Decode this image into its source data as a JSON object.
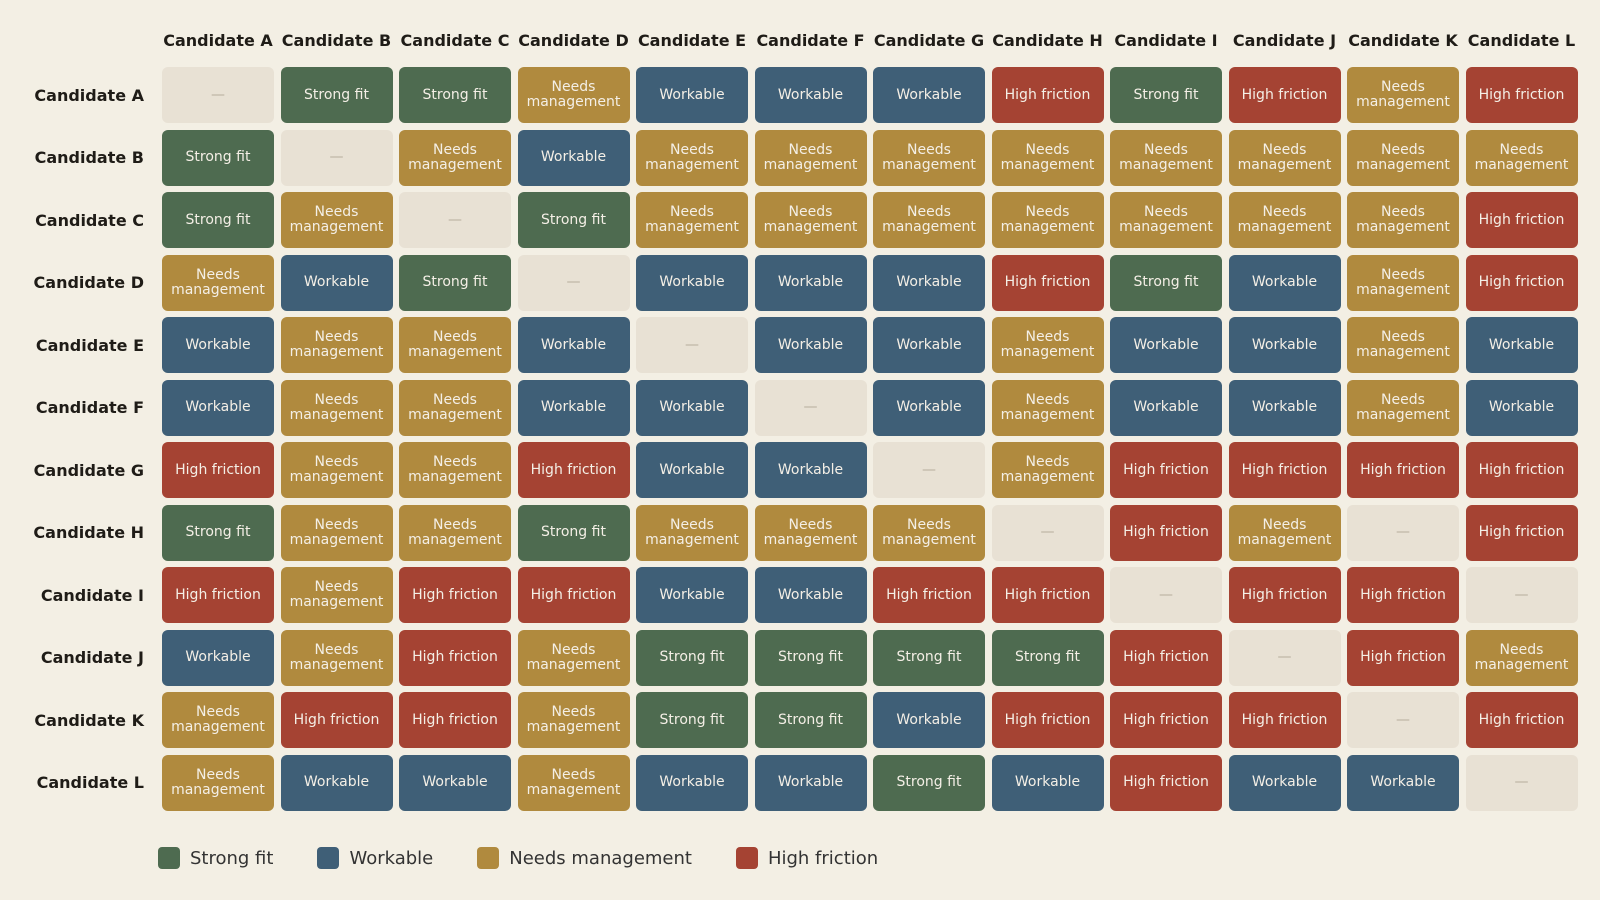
{
  "chart_data": {
    "type": "heatmap",
    "categories": [
      "strong",
      "workable",
      "needs",
      "high",
      "none"
    ],
    "category_labels": {
      "strong": "Strong fit",
      "workable": "Workable",
      "needs": "Needs management",
      "high": "High friction",
      "none": "—"
    },
    "cell_labels": {
      "strong": "Strong fit",
      "workable": "Workable",
      "needs": "Needs\nmanagement",
      "high": "High friction",
      "none": "—"
    },
    "colors": {
      "strong": "#4e6b50",
      "workable": "#3f5f77",
      "needs": "#b08a3e",
      "high": "#a54333",
      "none": "#e8e1d4"
    },
    "x": [
      "Candidate A",
      "Candidate B",
      "Candidate C",
      "Candidate D",
      "Candidate E",
      "Candidate F",
      "Candidate G",
      "Candidate H",
      "Candidate I",
      "Candidate J",
      "Candidate K",
      "Candidate L"
    ],
    "y": [
      "Candidate A",
      "Candidate B",
      "Candidate C",
      "Candidate D",
      "Candidate E",
      "Candidate F",
      "Candidate G",
      "Candidate H",
      "Candidate I",
      "Candidate J",
      "Candidate K",
      "Candidate L"
    ],
    "values": [
      [
        "none",
        "strong",
        "strong",
        "needs",
        "workable",
        "workable",
        "workable",
        "high",
        "strong",
        "high",
        "needs",
        "high"
      ],
      [
        "strong",
        "none",
        "needs",
        "workable",
        "needs",
        "needs",
        "needs",
        "needs",
        "needs",
        "needs",
        "needs",
        "needs"
      ],
      [
        "strong",
        "needs",
        "none",
        "strong",
        "needs",
        "needs",
        "needs",
        "needs",
        "needs",
        "needs",
        "needs",
        "high"
      ],
      [
        "needs",
        "workable",
        "strong",
        "none",
        "workable",
        "workable",
        "workable",
        "high",
        "strong",
        "workable",
        "needs",
        "high"
      ],
      [
        "workable",
        "needs",
        "needs",
        "workable",
        "none",
        "workable",
        "workable",
        "needs",
        "workable",
        "workable",
        "needs",
        "workable"
      ],
      [
        "workable",
        "needs",
        "needs",
        "workable",
        "workable",
        "none",
        "workable",
        "needs",
        "workable",
        "workable",
        "needs",
        "workable"
      ],
      [
        "high",
        "needs",
        "needs",
        "high",
        "workable",
        "workable",
        "none",
        "needs",
        "high",
        "high",
        "high",
        "high"
      ],
      [
        "strong",
        "needs",
        "needs",
        "strong",
        "needs",
        "needs",
        "needs",
        "none",
        "high",
        "needs",
        "none",
        "high"
      ],
      [
        "high",
        "needs",
        "high",
        "high",
        "workable",
        "workable",
        "high",
        "high",
        "none",
        "high",
        "high",
        "none"
      ],
      [
        "workable",
        "needs",
        "high",
        "needs",
        "strong",
        "strong",
        "strong",
        "strong",
        "high",
        "none",
        "high",
        "needs"
      ],
      [
        "needs",
        "high",
        "high",
        "needs",
        "strong",
        "strong",
        "workable",
        "high",
        "high",
        "high",
        "none",
        "high"
      ],
      [
        "needs",
        "workable",
        "workable",
        "needs",
        "workable",
        "workable",
        "strong",
        "workable",
        "high",
        "workable",
        "workable",
        "none"
      ]
    ],
    "legend": [
      "strong",
      "workable",
      "needs",
      "high"
    ],
    "legend_position": "bottom-left"
  }
}
